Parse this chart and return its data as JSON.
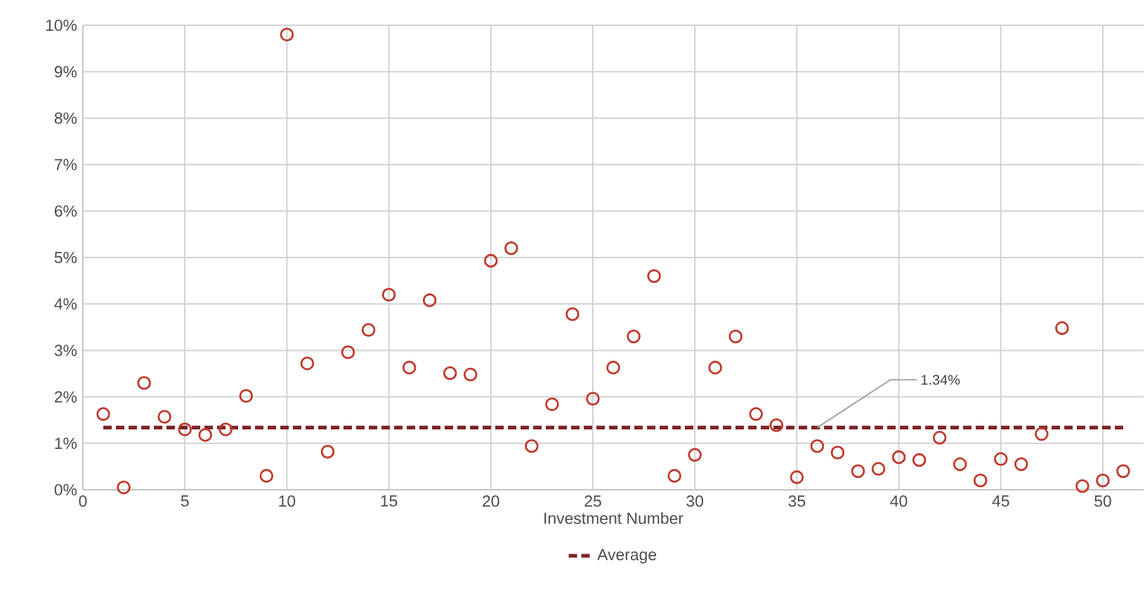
{
  "chart_data": {
    "type": "scatter",
    "xlabel": "Investment Number",
    "x": [
      1,
      2,
      3,
      4,
      5,
      6,
      7,
      8,
      9,
      10,
      11,
      12,
      13,
      14,
      15,
      16,
      17,
      18,
      19,
      20,
      21,
      22,
      23,
      24,
      25,
      26,
      27,
      28,
      29,
      30,
      31,
      32,
      33,
      34,
      35,
      36,
      37,
      38,
      39,
      40,
      41,
      42,
      43,
      44,
      45,
      46,
      47,
      48,
      49,
      50,
      51
    ],
    "series": [
      {
        "color": "#c0392b",
        "marker": "circle",
        "values": [
          1.63,
          0.05,
          2.3,
          1.57,
          1.3,
          1.18,
          1.3,
          2.02,
          0.3,
          9.8,
          2.72,
          0.82,
          2.96,
          3.44,
          4.2,
          2.63,
          4.08,
          2.51,
          2.48,
          4.93,
          5.2,
          0.94,
          1.84,
          3.78,
          1.96,
          2.63,
          3.3,
          4.6,
          0.3,
          0.75,
          2.63,
          3.3,
          1.63,
          1.39,
          0.27,
          0.94,
          0.8,
          0.4,
          0.45,
          0.7,
          0.64,
          1.12,
          0.55,
          0.2,
          0.66,
          0.55,
          1.2,
          3.48,
          0.08,
          0.2,
          0.4
        ]
      },
      {
        "type": "line",
        "name": "Average",
        "color": "#7b2326",
        "line_style": "dashed",
        "marker": "none",
        "x": [
          1,
          51
        ],
        "values": [
          1.34,
          1.34
        ]
      }
    ],
    "annotations": [
      {
        "text": "1.34%",
        "x": 36,
        "y": 1.34
      }
    ],
    "xlim": [
      0,
      52
    ],
    "xticks": [
      0,
      5,
      10,
      15,
      20,
      25,
      30,
      35,
      40,
      45,
      50
    ],
    "ylim": [
      0,
      10
    ],
    "yticks": [
      {
        "value": 0,
        "label": "0%"
      },
      {
        "value": 1,
        "label": "1%"
      },
      {
        "value": 2,
        "label": "2%"
      },
      {
        "value": 3,
        "label": "3%"
      },
      {
        "value": 4,
        "label": "4%"
      },
      {
        "value": 5,
        "label": "5%"
      },
      {
        "value": 6,
        "label": "6%"
      },
      {
        "value": 7,
        "label": "7%"
      },
      {
        "value": 8,
        "label": "8%"
      },
      {
        "value": 9,
        "label": "9%"
      },
      {
        "value": 10,
        "label": "10%"
      }
    ],
    "grid": true,
    "legend": "bottom"
  }
}
